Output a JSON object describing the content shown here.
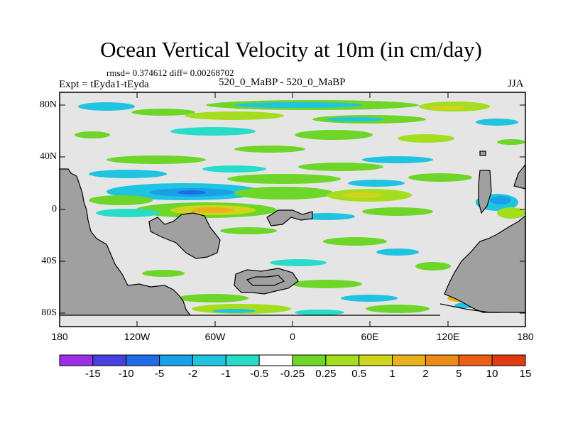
{
  "title": "Ocean Vertical Velocity at 10m (in cm/day)",
  "stats": "rmsd= 0.374612 diff= 0.00268702",
  "left_label": "Expt = tEyda1-tEyda",
  "center_label": "520_0_MaBP - 520_0_MaBP",
  "right_label": "JJA",
  "y_ticks": [
    "80N",
    "40N",
    "0",
    "40S",
    "80S"
  ],
  "x_ticks": [
    "180",
    "120W",
    "60W",
    "0",
    "60E",
    "120E",
    "180"
  ],
  "colorbar": {
    "labels": [
      "-15",
      "-10",
      "-5",
      "-2",
      "-1",
      "-0.5",
      "-0.25",
      "0.25",
      "0.5",
      "1",
      "2",
      "5",
      "10",
      "15"
    ],
    "colors": [
      "#9d2ee6",
      "#4a3fe0",
      "#1e6ce6",
      "#19a0e8",
      "#1fc4e0",
      "#27dcc8",
      "#ffffff",
      "#6dd629",
      "#a5dd1f",
      "#cfd51a",
      "#e9b21b",
      "#ee8a17",
      "#ee5e14",
      "#e23a10"
    ]
  },
  "map": {
    "background": "#e5e5e5",
    "land_color": "#a0a0a0"
  }
}
